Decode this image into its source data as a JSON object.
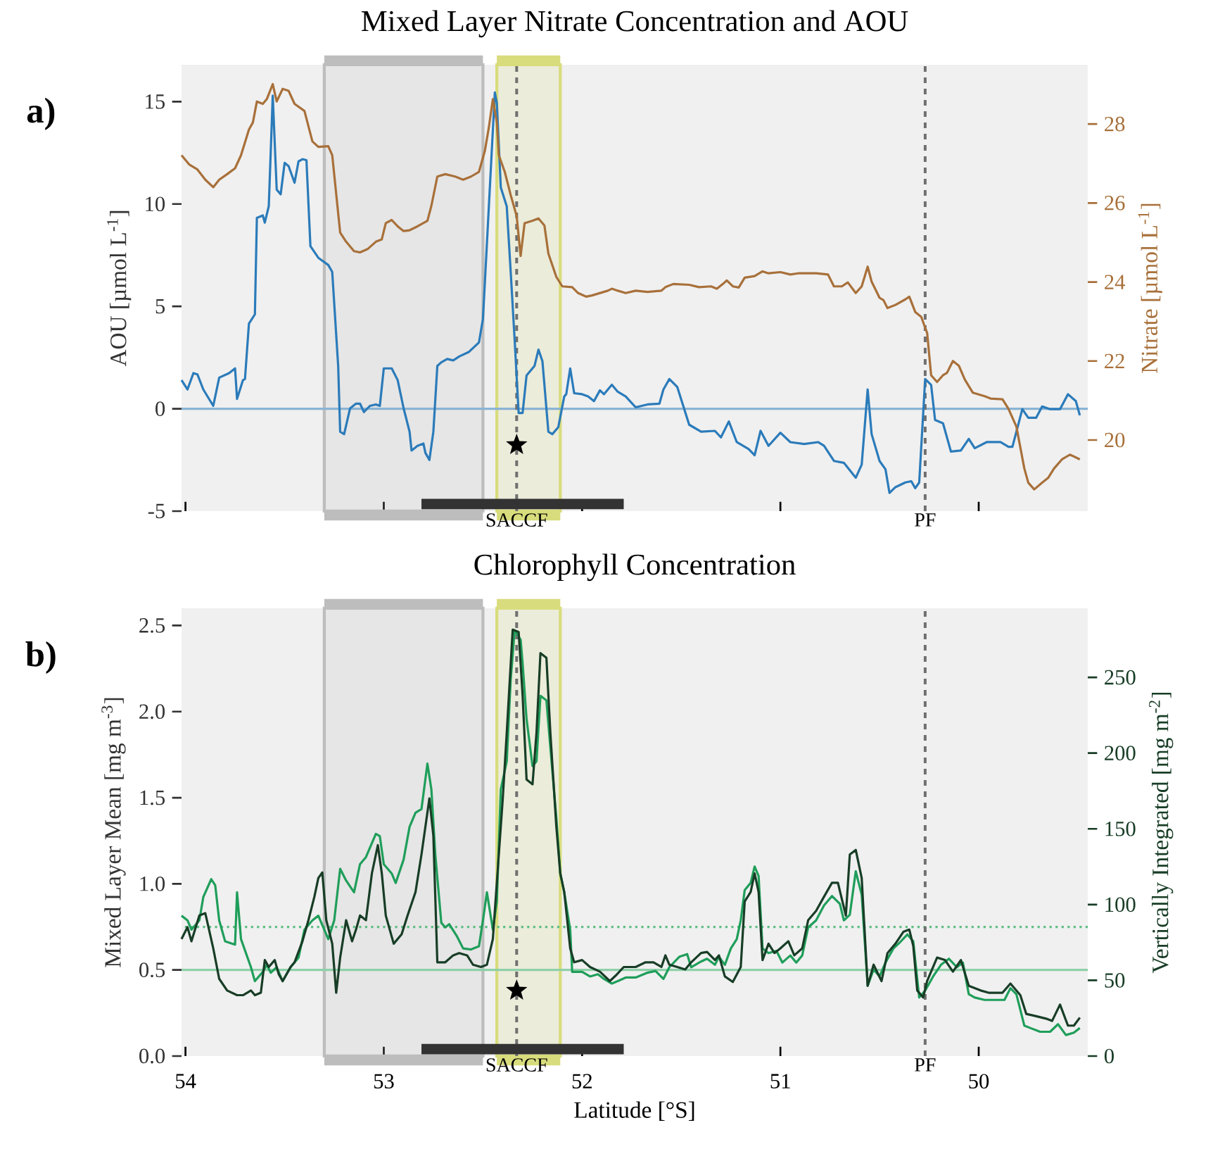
{
  "chart_data": [
    {
      "type": "line",
      "title": "Mixed Layer Nitrate Concentration and AOU",
      "ylabel": "AOU [µmol L$^{-1}$]",
      "y2label": "Nitrate [µmol L$^{-1}$]",
      "xlim": [
        54.02,
        49.45
      ],
      "xticks": [
        54,
        53,
        52,
        51,
        50
      ],
      "ylim": [
        -5,
        16.8
      ],
      "yticks": [
        -5,
        0,
        5,
        10,
        15
      ],
      "y2lim": [
        18.2,
        29.5
      ],
      "y2ticks": [
        20,
        22,
        24,
        26,
        28
      ],
      "tick_labels": "y",
      "annotations": [
        "a)"
      ],
      "ref_lines": [
        {
          "axis": "y",
          "value": 0,
          "color": "#8ab4d4",
          "line_style": "solid"
        },
        {
          "axis": "x",
          "value": 52.33,
          "label": "SACCF",
          "color": "#707070",
          "line_style": "dashed"
        },
        {
          "axis": "x",
          "value": 50.27,
          "label": "PF",
          "color": "#707070",
          "line_style": "dashed"
        }
      ],
      "bands": [
        {
          "axis": "x",
          "from": 53.3,
          "to": 52.5,
          "color": "#bdbdbd"
        },
        {
          "axis": "x",
          "from": 52.43,
          "to": 52.11,
          "color": "#d8dc7c"
        }
      ],
      "series": [
        {
          "color": "#333333",
          "x": [
            52.81,
            51.79
          ],
          "values": [
            -4.65,
            -4.65
          ]
        },
        {
          "color": "#2b7bba",
          "x": [
            54.02,
            53.99,
            53.96,
            53.94,
            53.91,
            53.86,
            53.83,
            53.78,
            53.75,
            53.74,
            53.71,
            53.7,
            53.68,
            53.65,
            53.64,
            53.61,
            53.6,
            53.58,
            53.56,
            53.54,
            53.52,
            53.5,
            53.48,
            53.45,
            53.43,
            53.41,
            53.39,
            53.37,
            53.33,
            53.28,
            53.26,
            53.23,
            53.22,
            53.2,
            53.17,
            53.14,
            53.12,
            53.1,
            53.07,
            53.04,
            53.02,
            53.0,
            52.96,
            52.93,
            52.9,
            52.87,
            52.86,
            52.83,
            52.8,
            52.79,
            52.77,
            52.75,
            52.73,
            52.71,
            52.68,
            52.65,
            52.62,
            52.57,
            52.52,
            52.5,
            52.48,
            52.44,
            52.43,
            52.41,
            52.38,
            52.36,
            52.34,
            52.32,
            52.3,
            52.28,
            52.24,
            52.22,
            52.2,
            52.17,
            52.15,
            52.12,
            52.09,
            52.08,
            52.06,
            52.04,
            52.0,
            51.97,
            51.94,
            51.91,
            51.89,
            51.85,
            51.82,
            51.78,
            51.73,
            51.67,
            51.61,
            51.59,
            51.56,
            51.52,
            51.46,
            51.4,
            51.33,
            51.3,
            51.26,
            51.22,
            51.16,
            51.13,
            51.1,
            51.06,
            51.0,
            50.95,
            50.88,
            50.81,
            50.78,
            50.73,
            50.68,
            50.62,
            50.59,
            50.56,
            50.54,
            50.5,
            50.47,
            50.45,
            50.42,
            50.37,
            50.34,
            50.32,
            50.3,
            50.27,
            50.24,
            50.22,
            50.18,
            50.14,
            50.09,
            50.05,
            50.02,
            49.96,
            49.89,
            49.85,
            49.83,
            49.78,
            49.75,
            49.71,
            49.68,
            49.64,
            49.59,
            49.55,
            49.51,
            49.49
          ],
          "values": [
            1.4,
            0.94,
            1.74,
            1.68,
            0.94,
            0.14,
            1.52,
            1.74,
            1.97,
            0.48,
            1.4,
            1.45,
            4.16,
            4.61,
            9.32,
            9.44,
            9.09,
            9.89,
            15.29,
            10.7,
            10.47,
            12.01,
            11.85,
            11.04,
            12.08,
            12.19,
            12.14,
            7.94,
            7.37,
            7.02,
            6.68,
            2.09,
            -1.12,
            -1.24,
            0.02,
            0.25,
            0.25,
            -0.16,
            0.14,
            0.21,
            0.14,
            1.97,
            1.97,
            1.4,
            0.02,
            -1.12,
            -2.04,
            -1.81,
            -1.7,
            -2.16,
            -2.5,
            -1.12,
            2.09,
            2.27,
            2.43,
            2.36,
            2.55,
            2.78,
            3.24,
            4.38,
            8.06,
            15.45,
            14.94,
            10.81,
            9.89,
            6.68,
            3.35,
            -0.21,
            -0.21,
            1.63,
            2.09,
            2.89,
            2.32,
            -1.12,
            -1.24,
            -0.9,
            0.6,
            0.71,
            1.97,
            0.76,
            0.71,
            0.6,
            0.37,
            0.9,
            0.71,
            1.17,
            0.83,
            0.6,
            0.07,
            0.21,
            0.25,
            0.94,
            1.45,
            1.06,
            -0.78,
            -1.12,
            -1.08,
            -1.4,
            -0.62,
            -1.63,
            -1.97,
            -2.27,
            -1.08,
            -1.81,
            -1.17,
            -1.63,
            -1.72,
            -1.63,
            -1.81,
            -2.55,
            -2.64,
            -3.37,
            -2.73,
            0.94,
            -1.24,
            -2.55,
            -2.96,
            -4.11,
            -3.83,
            -3.6,
            -3.54,
            -3.88,
            -3.6,
            1.45,
            1.17,
            -0.55,
            -0.71,
            -2.09,
            -2.04,
            -1.47,
            -1.93,
            -1.63,
            -1.63,
            -1.86,
            -1.86,
            -0.02,
            -0.44,
            -0.44,
            0.11,
            -0.02,
            -0.02,
            0.71,
            0.37,
            -0.32
          ]
        },
        {
          "color": "#a8703a",
          "axis": "y2",
          "x": [
            54.02,
            53.98,
            53.94,
            53.9,
            53.86,
            53.83,
            53.79,
            53.75,
            53.72,
            53.68,
            53.66,
            53.64,
            53.61,
            53.59,
            53.56,
            53.54,
            53.51,
            53.48,
            53.45,
            53.4,
            53.36,
            53.33,
            53.28,
            53.26,
            53.22,
            53.19,
            53.15,
            53.12,
            53.08,
            53.04,
            53.01,
            52.99,
            52.96,
            52.93,
            52.9,
            52.87,
            52.83,
            52.78,
            52.76,
            52.73,
            52.69,
            52.64,
            52.6,
            52.56,
            52.52,
            52.49,
            52.47,
            52.45,
            52.43,
            52.42,
            52.39,
            52.36,
            52.33,
            52.31,
            52.29,
            52.25,
            52.22,
            52.19,
            52.17,
            52.13,
            52.1,
            52.05,
            52.02,
            51.98,
            51.95,
            51.91,
            51.87,
            51.85,
            51.82,
            51.78,
            51.73,
            51.67,
            51.6,
            51.58,
            51.54,
            51.46,
            51.41,
            51.35,
            51.32,
            51.29,
            51.27,
            51.24,
            51.21,
            51.18,
            51.13,
            51.09,
            51.06,
            51.0,
            50.95,
            50.91,
            50.82,
            50.76,
            50.73,
            50.69,
            50.66,
            50.62,
            50.59,
            50.56,
            50.54,
            50.5,
            50.48,
            50.46,
            50.42,
            50.37,
            50.35,
            50.32,
            50.29,
            50.26,
            50.24,
            50.21,
            50.18,
            50.16,
            50.13,
            50.1,
            50.07,
            50.03,
            49.97,
            49.94,
            49.88,
            49.85,
            49.81,
            49.77,
            49.75,
            49.72,
            49.68,
            49.65,
            49.62,
            49.58,
            49.54,
            49.49
          ],
          "values": [
            27.21,
            26.97,
            26.85,
            26.59,
            26.4,
            26.59,
            26.73,
            26.88,
            27.21,
            27.86,
            28.04,
            28.57,
            28.51,
            28.63,
            29.01,
            28.57,
            28.89,
            28.84,
            28.51,
            28.33,
            27.56,
            27.42,
            27.44,
            27.21,
            25.25,
            25.02,
            24.78,
            24.75,
            24.84,
            25.02,
            25.08,
            25.49,
            25.57,
            25.41,
            25.29,
            25.31,
            25.41,
            25.55,
            25.93,
            26.67,
            26.73,
            26.67,
            26.59,
            26.67,
            26.79,
            27.33,
            27.92,
            28.63,
            28.04,
            27.21,
            26.79,
            26.2,
            25.67,
            24.66,
            25.49,
            25.55,
            25.61,
            25.43,
            24.72,
            24.13,
            23.89,
            23.87,
            23.72,
            23.63,
            23.66,
            23.72,
            23.78,
            23.83,
            23.78,
            23.72,
            23.78,
            23.75,
            23.78,
            23.87,
            23.95,
            23.93,
            23.87,
            23.89,
            23.83,
            23.95,
            24.04,
            23.89,
            23.86,
            24.11,
            24.15,
            24.27,
            24.22,
            24.25,
            24.19,
            24.22,
            24.22,
            24.19,
            23.89,
            23.89,
            23.99,
            23.72,
            23.89,
            24.39,
            24.01,
            23.6,
            23.54,
            23.34,
            23.42,
            23.56,
            23.63,
            23.24,
            23.12,
            22.71,
            21.64,
            21.47,
            21.64,
            21.7,
            22.0,
            21.88,
            21.53,
            21.2,
            21.11,
            21.05,
            21.03,
            20.79,
            20.34,
            19.28,
            18.92,
            18.75,
            18.92,
            19.04,
            19.28,
            19.51,
            19.63,
            19.51
          ]
        },
        {
          "type": "scatter",
          "marker": "star",
          "color": "#000000",
          "x": [
            52.33
          ],
          "values": [
            -1.77
          ]
        }
      ]
    },
    {
      "type": "line",
      "title": "Chlorophyll Concentration",
      "xlabel": "Latitude [°S]",
      "ylabel": "Mixed Layer Mean [mg m$^{-3}$]",
      "y2label": "Vertically Integrated [mg m$^{-2}$]",
      "xlim": [
        54.02,
        49.45
      ],
      "xticks": [
        54,
        53,
        52,
        51,
        50
      ],
      "ylim": [
        0,
        2.6
      ],
      "yticks": [
        {
          "value": 0,
          "label": "0.0"
        },
        0.5,
        {
          "value": 1,
          "label": "1.0"
        },
        1.5,
        {
          "value": 2,
          "label": "2.0"
        },
        2.5
      ],
      "y2lim": [
        0,
        295.6
      ],
      "y2ticks": [
        0,
        50,
        100,
        150,
        200,
        250
      ],
      "annotations": [
        "b)"
      ],
      "ref_lines": [
        {
          "axis": "y",
          "value": 0.5,
          "color": "#8fd0a8",
          "line_style": "solid"
        },
        {
          "axis": "y",
          "value": 0.75,
          "color": "#5fbf85",
          "line_style": "dotted"
        },
        {
          "axis": "x",
          "value": 52.33,
          "label": "SACCF",
          "color": "#707070",
          "line_style": "dashed"
        },
        {
          "axis": "x",
          "value": 50.27,
          "label": "PF",
          "color": "#707070",
          "line_style": "dashed"
        }
      ],
      "bands": [
        {
          "axis": "x",
          "from": 53.3,
          "to": 52.5,
          "color": "#bdbdbd"
        },
        {
          "axis": "x",
          "from": 52.43,
          "to": 52.11,
          "color": "#d8dc7c"
        }
      ],
      "series": [
        {
          "color": "#333333",
          "x": [
            52.81,
            51.79
          ],
          "values": [
            0.04,
            0.04
          ]
        },
        {
          "color": "#1f9e5a",
          "x": [
            54.02,
            53.99,
            53.97,
            53.93,
            53.91,
            53.87,
            53.85,
            53.83,
            53.8,
            53.75,
            53.74,
            53.72,
            53.67,
            53.65,
            53.61,
            53.59,
            53.57,
            53.54,
            53.51,
            53.47,
            53.43,
            53.4,
            53.36,
            53.33,
            53.28,
            53.25,
            53.22,
            53.19,
            53.15,
            53.12,
            53.09,
            53.04,
            53.02,
            53.0,
            52.96,
            52.94,
            52.9,
            52.87,
            52.84,
            52.81,
            52.78,
            52.76,
            52.74,
            52.71,
            52.69,
            52.67,
            52.63,
            52.6,
            52.56,
            52.52,
            52.5,
            52.48,
            52.45,
            52.43,
            52.41,
            52.38,
            52.36,
            52.34,
            52.31,
            52.3,
            52.28,
            52.25,
            52.23,
            52.21,
            52.18,
            52.16,
            52.13,
            52.11,
            52.09,
            52.06,
            52.05,
            52.0,
            51.96,
            51.92,
            51.89,
            51.85,
            51.82,
            51.78,
            51.73,
            51.67,
            51.63,
            51.59,
            51.56,
            51.51,
            51.47,
            51.45,
            51.4,
            51.37,
            51.33,
            51.31,
            51.28,
            51.25,
            51.22,
            51.2,
            51.18,
            51.15,
            51.13,
            51.11,
            51.09,
            51.06,
            51.02,
            50.99,
            50.95,
            50.92,
            50.89,
            50.86,
            50.82,
            50.78,
            50.74,
            50.7,
            50.68,
            50.65,
            50.62,
            50.59,
            50.56,
            50.53,
            50.5,
            50.47,
            50.43,
            50.4,
            50.36,
            50.33,
            50.3,
            50.27,
            50.23,
            50.19,
            50.15,
            50.11,
            50.08,
            50.05,
            50.02,
            49.97,
            49.92,
            49.87,
            49.84,
            49.81,
            49.77,
            49.74,
            49.69,
            49.64,
            49.6,
            49.56,
            49.52,
            49.49
          ],
          "values": [
            0.815,
            0.788,
            0.734,
            0.788,
            0.924,
            1.027,
            0.992,
            0.788,
            0.666,
            0.647,
            0.951,
            0.679,
            0.516,
            0.435,
            0.489,
            0.53,
            0.484,
            0.516,
            0.435,
            0.516,
            0.571,
            0.734,
            0.788,
            0.815,
            0.679,
            0.788,
            1.087,
            1.019,
            0.951,
            1.114,
            1.155,
            1.29,
            1.277,
            1.114,
            1.06,
            1.005,
            1.141,
            1.331,
            1.413,
            1.434,
            1.698,
            1.548,
            1.168,
            0.774,
            0.747,
            0.766,
            0.693,
            0.625,
            0.619,
            0.638,
            0.788,
            0.951,
            0.734,
            0.896,
            1.548,
            1.711,
            2.187,
            2.472,
            2.418,
            2.282,
            1.956,
            1.684,
            1.711,
            2.092,
            2.065,
            1.793,
            1.385,
            1.059,
            0.951,
            0.734,
            0.489,
            0.489,
            0.462,
            0.475,
            0.448,
            0.421,
            0.435,
            0.456,
            0.456,
            0.484,
            0.494,
            0.448,
            0.516,
            0.576,
            0.592,
            0.516,
            0.549,
            0.565,
            0.53,
            0.576,
            0.53,
            0.625,
            0.679,
            0.788,
            0.964,
            1.005,
            1.1,
            1.046,
            0.625,
            0.598,
            0.611,
            0.543,
            0.584,
            0.543,
            0.584,
            0.747,
            0.788,
            0.875,
            0.929,
            0.883,
            0.788,
            0.82,
            1.073,
            0.937,
            0.408,
            0.503,
            0.462,
            0.543,
            0.625,
            0.657,
            0.706,
            0.666,
            0.34,
            0.38,
            0.462,
            0.53,
            0.565,
            0.516,
            0.543,
            0.359,
            0.34,
            0.326,
            0.326,
            0.326,
            0.394,
            0.359,
            0.177,
            0.163,
            0.141,
            0.141,
            0.185,
            0.122,
            0.136,
            0.163
          ]
        },
        {
          "color": "#183d26",
          "axis": "y2",
          "x": [
            54.02,
            53.99,
            53.97,
            53.93,
            53.9,
            53.86,
            53.83,
            53.79,
            53.74,
            53.71,
            53.67,
            53.65,
            53.62,
            53.6,
            53.58,
            53.55,
            53.53,
            53.51,
            53.47,
            53.45,
            53.41,
            53.38,
            53.35,
            53.33,
            53.31,
            53.29,
            53.26,
            53.24,
            53.22,
            53.19,
            53.16,
            53.14,
            53.12,
            53.09,
            53.06,
            53.03,
            53.01,
            52.99,
            52.95,
            52.91,
            52.88,
            52.84,
            52.81,
            52.77,
            52.75,
            52.73,
            52.69,
            52.65,
            52.62,
            52.58,
            52.55,
            52.51,
            52.48,
            52.45,
            52.43,
            52.4,
            52.38,
            52.35,
            52.32,
            52.3,
            52.28,
            52.25,
            52.23,
            52.21,
            52.18,
            52.16,
            52.13,
            52.11,
            52.09,
            52.06,
            52.04,
            52.0,
            51.96,
            51.91,
            51.86,
            51.83,
            51.79,
            51.73,
            51.68,
            51.64,
            51.6,
            51.58,
            51.56,
            51.52,
            51.48,
            51.45,
            51.4,
            51.37,
            51.33,
            51.31,
            51.28,
            51.24,
            51.2,
            51.18,
            51.15,
            51.13,
            51.11,
            51.09,
            51.06,
            51.03,
            51.0,
            50.96,
            50.93,
            50.89,
            50.86,
            50.82,
            50.78,
            50.74,
            50.71,
            50.67,
            50.65,
            50.62,
            50.59,
            50.56,
            50.53,
            50.49,
            50.46,
            50.42,
            50.38,
            50.35,
            50.33,
            50.31,
            50.28,
            50.26,
            50.21,
            50.17,
            50.13,
            50.09,
            50.05,
            49.99,
            49.95,
            49.88,
            49.84,
            49.79,
            49.76,
            49.71,
            49.66,
            49.63,
            49.59,
            49.55,
            49.52,
            49.49
          ],
          "values": [
            77.3,
            85.1,
            75.8,
            92.8,
            94.3,
            71.1,
            51.0,
            43.3,
            40.2,
            40.2,
            43.3,
            40.2,
            41.8,
            63.4,
            58.8,
            63.4,
            54.1,
            49.5,
            58.8,
            61.9,
            75.8,
            89.7,
            105.2,
            117.5,
            121.2,
            89.7,
            74.2,
            41.8,
            65.0,
            89.7,
            75.8,
            83.5,
            92.8,
            89.7,
            120.6,
            139.2,
            120.6,
            92.8,
            74.2,
            80.4,
            92.8,
            108.3,
            133.0,
            170.1,
            145.4,
            61.9,
            61.9,
            66.5,
            68.0,
            66.5,
            60.3,
            58.8,
            60.3,
            77.3,
            114.4,
            170.1,
            213.4,
            281.5,
            279.9,
            238.2,
            182.5,
            179.4,
            213.4,
            266.0,
            262.9,
            213.4,
            151.6,
            120.6,
            108.3,
            71.1,
            61.9,
            63.4,
            58.8,
            55.7,
            49.5,
            53.2,
            58.8,
            58.8,
            61.9,
            61.9,
            58.8,
            66.5,
            60.3,
            58.8,
            57.2,
            61.9,
            68.0,
            68.7,
            63.4,
            66.5,
            52.6,
            48.9,
            58.8,
            102.1,
            108.3,
            120.6,
            108.3,
            63.4,
            74.2,
            68.0,
            71.1,
            75.8,
            66.5,
            71.1,
            89.7,
            95.9,
            105.2,
            114.4,
            114.4,
            92.8,
            133.0,
            136.1,
            117.5,
            46.4,
            60.3,
            49.5,
            68.0,
            74.2,
            82.0,
            83.5,
            72.7,
            43.3,
            38.7,
            49.5,
            65.0,
            63.4,
            55.7,
            63.4,
            46.4,
            43.3,
            41.8,
            41.8,
            47.9,
            40.2,
            27.8,
            26.3,
            24.7,
            23.2,
            34.0,
            20.1,
            20.1,
            25.4
          ]
        },
        {
          "type": "scatter",
          "marker": "star",
          "color": "#000000",
          "x": [
            52.33
          ],
          "values": [
            0.38
          ]
        }
      ]
    }
  ]
}
